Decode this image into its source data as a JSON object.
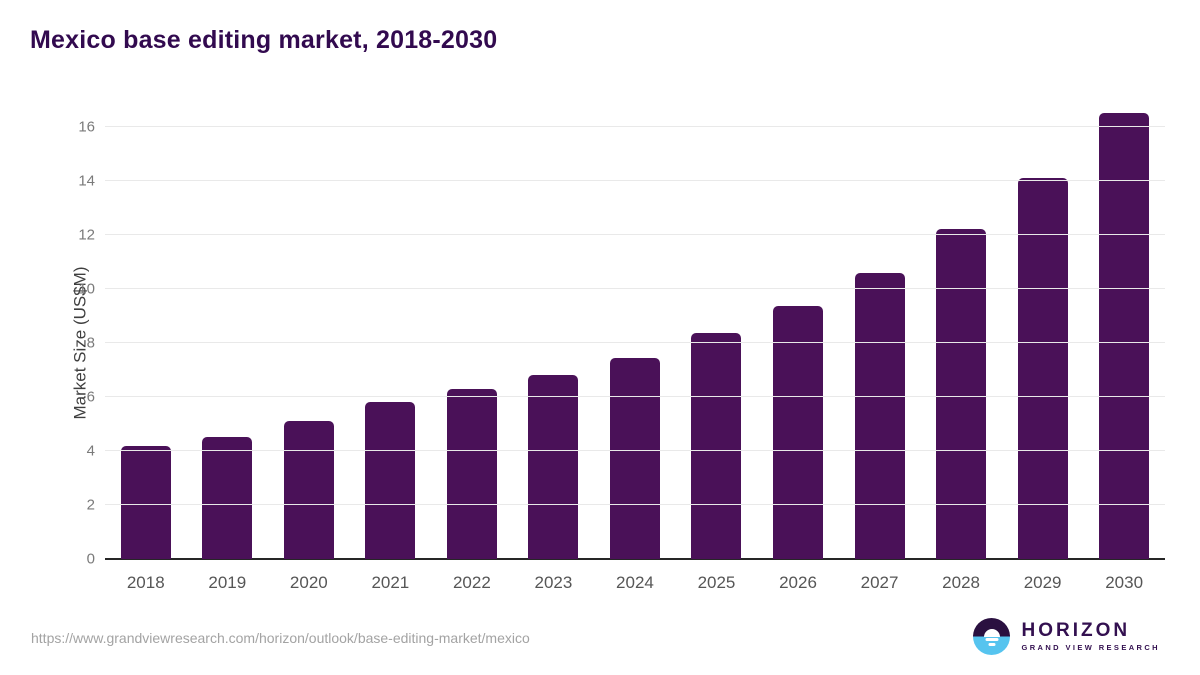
{
  "page": {
    "title": "Mexico base editing market, 2018-2030"
  },
  "chart_data": {
    "type": "bar",
    "title": "Mexico base editing market, 2018-2030",
    "categories": [
      "2018",
      "2019",
      "2020",
      "2021",
      "2022",
      "2023",
      "2024",
      "2025",
      "2026",
      "2027",
      "2028",
      "2029",
      "2030"
    ],
    "values": [
      4.2,
      4.5,
      5.1,
      5.8,
      6.3,
      6.8,
      7.45,
      8.35,
      9.35,
      10.6,
      12.2,
      14.1,
      16.5
    ],
    "xlabel": "",
    "ylabel": "Market Size (US$M)",
    "ylim": [
      0,
      16.8
    ],
    "yticks": [
      0,
      2,
      4,
      6,
      8,
      10,
      12,
      14,
      16
    ],
    "grid": true,
    "legend": false,
    "bar_color": "#4a1158"
  },
  "footer": {
    "source_url": "https://www.grandviewresearch.com/horizon/outlook/base-editing-market/mexico",
    "logo": {
      "brand": "HORIZON",
      "tagline": "GRAND VIEW RESEARCH"
    }
  },
  "colors": {
    "title": "#320a4f",
    "bar": "#4a1158",
    "gridline": "#e9e9e9",
    "axis_line": "#262626",
    "tick_label": "#7a7a7a",
    "x_label": "#565656",
    "url_text": "#a3a3a3",
    "logo_purple": "#2a1040",
    "logo_blue": "#56c4ef"
  }
}
